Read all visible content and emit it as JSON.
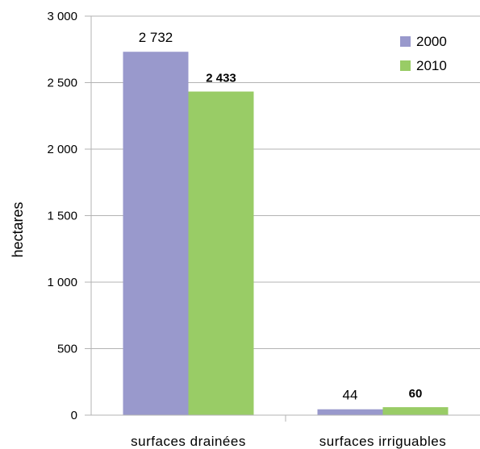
{
  "chart_data": {
    "type": "bar",
    "categories": [
      "surfaces drainées",
      "surfaces irriguables"
    ],
    "series": [
      {
        "name": "2000",
        "values": [
          2732,
          44
        ],
        "color": "#9999cc",
        "labels": [
          "2 732",
          "44"
        ],
        "label_bold": false
      },
      {
        "name": "2010",
        "values": [
          2433,
          60
        ],
        "color": "#99cc66",
        "labels": [
          "2 433",
          "60"
        ],
        "label_bold": true
      }
    ],
    "ylabel": "hectares",
    "ylim": [
      0,
      3000
    ],
    "yticks": [
      0,
      500,
      1000,
      1500,
      2000,
      2500,
      3000
    ],
    "ytick_labels": [
      "0",
      "500",
      "1 000",
      "1 500",
      "2 000",
      "2 500",
      "3 000"
    ],
    "grid": true,
    "legend_position": "top-right"
  }
}
